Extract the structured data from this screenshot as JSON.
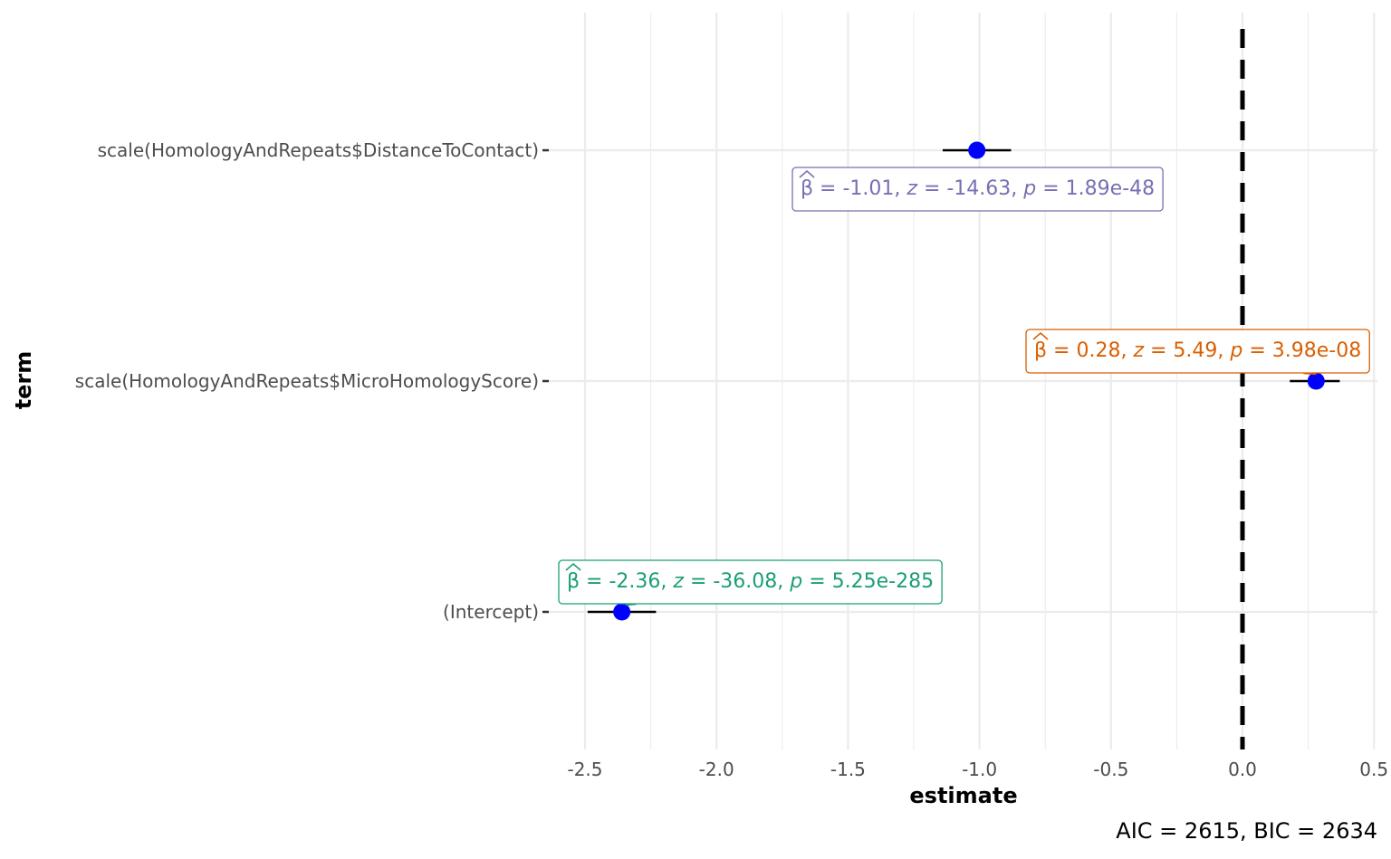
{
  "chart_data": {
    "type": "scatter",
    "title": "",
    "xlabel": "estimate",
    "ylabel": "term",
    "xlim": [
      -2.6,
      0.5
    ],
    "x_ticks": [
      -2.5,
      -2.0,
      -1.5,
      -1.0,
      -0.5,
      0.0,
      0.5
    ],
    "x_tick_labels": [
      "-2.5",
      "-2.0",
      "-1.5",
      "-1.0",
      "-0.5",
      "0.0",
      "0.5"
    ],
    "reference_line": 0,
    "grid": true,
    "point_color": "#0000ff",
    "terms": [
      {
        "term": "scale(HomologyAndRepeats$DistanceToContact)",
        "estimate": -1.01,
        "conf_low": -1.14,
        "conf_high": -0.88,
        "color": "#7570b3",
        "label": {
          "beta": "-1.01",
          "z": "-14.63",
          "p": "1.89e-48"
        }
      },
      {
        "term": "scale(HomologyAndRepeats$MicroHomologyScore)",
        "estimate": 0.28,
        "conf_low": 0.18,
        "conf_high": 0.37,
        "color": "#d95f02",
        "label": {
          "beta": "0.28",
          "z": "5.49",
          "p": "3.98e-08"
        }
      },
      {
        "term": "(Intercept)",
        "estimate": -2.36,
        "conf_low": -2.49,
        "conf_high": -2.23,
        "color": "#1b9e77",
        "label": {
          "beta": "-2.36",
          "z": "-36.08",
          "p": "5.25e-285"
        }
      }
    ],
    "caption": "AIC = 2615, BIC = 2634"
  }
}
